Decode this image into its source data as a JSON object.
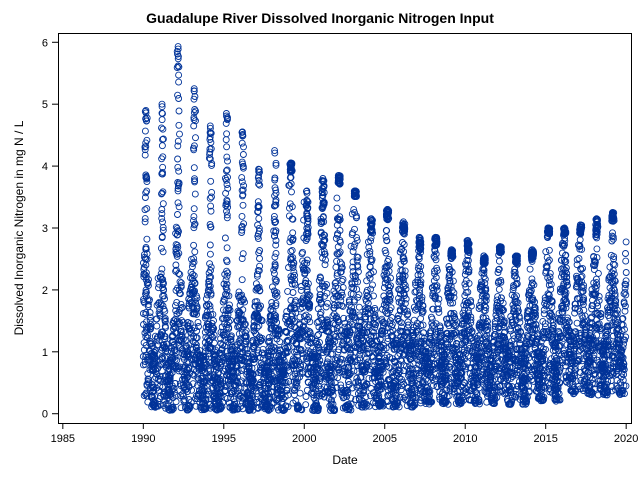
{
  "chart_data": {
    "type": "scatter",
    "title": "Guadalupe River Dissolved Inorganic Nitrogen Input",
    "xlabel": "Date",
    "ylabel": "Dissolved Inorganic Nitrogen in mg N / L",
    "xlim": [
      1984.7,
      2020.3
    ],
    "ylim": [
      -0.15,
      6.15
    ],
    "x_ticks": [
      1985,
      1990,
      1995,
      2000,
      2005,
      2010,
      2015,
      2020
    ],
    "y_ticks": [
      0,
      1,
      2,
      3,
      4,
      5,
      6
    ],
    "marker": "open-circle",
    "grid": false,
    "legend": "none",
    "point_color": "#003399",
    "series": [
      {
        "values_by_year": [
          {
            "year": 1990,
            "min": 0.1,
            "max": 4.9,
            "dense_max": 2.8
          },
          {
            "year": 1991,
            "min": 0.05,
            "max": 5.0,
            "dense_max": 2.4
          },
          {
            "year": 1992,
            "min": 0.05,
            "max": 5.93,
            "dense_max": 3.2
          },
          {
            "year": 1993,
            "min": 0.05,
            "max": 5.25,
            "dense_max": 2.5
          },
          {
            "year": 1994,
            "min": 0.05,
            "max": 4.65,
            "dense_max": 2.3
          },
          {
            "year": 1995,
            "min": 0.05,
            "max": 4.85,
            "dense_max": 2.6
          },
          {
            "year": 1996,
            "min": 0.05,
            "max": 4.55,
            "dense_max": 2.2
          },
          {
            "year": 1997,
            "min": 0.05,
            "max": 3.95,
            "dense_max": 2.3
          },
          {
            "year": 1998,
            "min": 0.05,
            "max": 4.25,
            "dense_max": 2.5
          },
          {
            "year": 1999,
            "min": 0.05,
            "max": 4.05,
            "dense_max": 3.9
          },
          {
            "year": 2000,
            "min": 0.05,
            "max": 3.6,
            "dense_max": 2.7
          },
          {
            "year": 2001,
            "min": 0.05,
            "max": 3.8,
            "dense_max": 3.3
          },
          {
            "year": 2002,
            "min": 0.05,
            "max": 3.85,
            "dense_max": 3.7
          },
          {
            "year": 2003,
            "min": 0.1,
            "max": 3.6,
            "dense_max": 3.5
          },
          {
            "year": 2004,
            "min": 0.1,
            "max": 3.15,
            "dense_max": 2.9
          },
          {
            "year": 2005,
            "min": 0.1,
            "max": 3.3,
            "dense_max": 3.1
          },
          {
            "year": 2006,
            "min": 0.1,
            "max": 3.1,
            "dense_max": 2.9
          },
          {
            "year": 2007,
            "min": 0.15,
            "max": 2.85,
            "dense_max": 2.6
          },
          {
            "year": 2008,
            "min": 0.15,
            "max": 2.85,
            "dense_max": 2.7
          },
          {
            "year": 2009,
            "min": 0.15,
            "max": 2.65,
            "dense_max": 2.5
          },
          {
            "year": 2010,
            "min": 0.15,
            "max": 2.8,
            "dense_max": 2.6
          },
          {
            "year": 2011,
            "min": 0.15,
            "max": 2.55,
            "dense_max": 2.4
          },
          {
            "year": 2012,
            "min": 0.15,
            "max": 2.7,
            "dense_max": 2.6
          },
          {
            "year": 2013,
            "min": 0.15,
            "max": 2.55,
            "dense_max": 2.4
          },
          {
            "year": 2014,
            "min": 0.2,
            "max": 2.65,
            "dense_max": 2.5
          },
          {
            "year": 2015,
            "min": 0.2,
            "max": 3.0,
            "dense_max": 2.9
          },
          {
            "year": 2016,
            "min": 0.3,
            "max": 3.0,
            "dense_max": 2.9
          },
          {
            "year": 2017,
            "min": 0.3,
            "max": 3.05,
            "dense_max": 2.9
          },
          {
            "year": 2018,
            "min": 0.3,
            "max": 3.15,
            "dense_max": 2.8
          },
          {
            "year": 2019,
            "min": 0.3,
            "max": 3.25,
            "dense_max": 3.1
          }
        ]
      }
    ]
  }
}
